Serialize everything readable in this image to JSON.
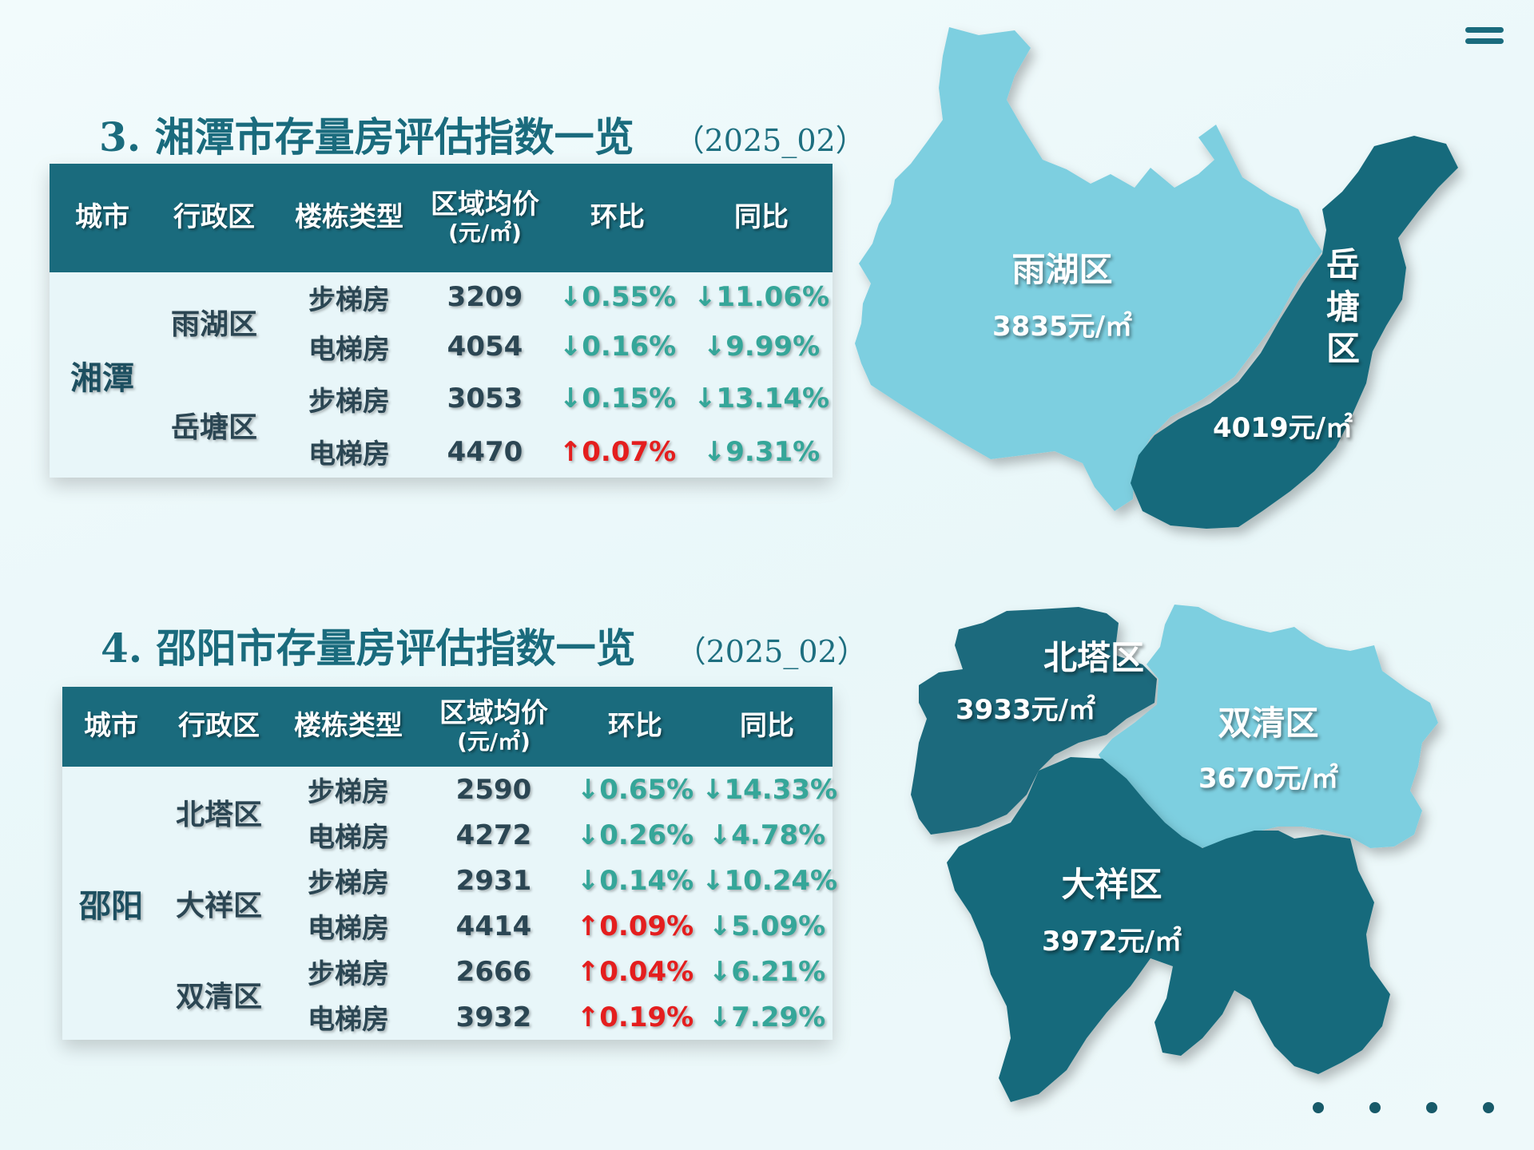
{
  "colors": {
    "dark": "#1a6b7d",
    "light": "#7dcfe0",
    "down": "#35a699",
    "up": "#e41e1e"
  },
  "header": {
    "menu_icon": "menu-icon"
  },
  "columns": [
    "城市",
    "行政区",
    "楼栋类型",
    "区域均价",
    "(元/㎡)",
    "环比",
    "同比"
  ],
  "sections": [
    {
      "title": "3. 湘潭市存量房评估指数一览",
      "period": "（2025_02）",
      "city": "湘潭",
      "rows": [
        {
          "district": "雨湖区",
          "type": "步梯房",
          "price": "3209",
          "mom": "↓0.55%",
          "yoy": "↓11.06%",
          "mom_dir": "down",
          "yoy_dir": "down"
        },
        {
          "district": "雨湖区",
          "type": "电梯房",
          "price": "4054",
          "mom": "↓0.16%",
          "yoy": "↓9.99%",
          "mom_dir": "down",
          "yoy_dir": "down"
        },
        {
          "district": "岳塘区",
          "type": "步梯房",
          "price": "3053",
          "mom": "↓0.15%",
          "yoy": "↓13.14%",
          "mom_dir": "down",
          "yoy_dir": "down"
        },
        {
          "district": "岳塘区",
          "type": "电梯房",
          "price": "4470",
          "mom": "↑0.07%",
          "yoy": "↓9.31%",
          "mom_dir": "up",
          "yoy_dir": "down"
        }
      ],
      "map": [
        {
          "name": "雨湖区",
          "price": "3835元/㎡"
        },
        {
          "name_chars": [
            "岳",
            "塘",
            "区"
          ],
          "price": "4019元/㎡"
        }
      ]
    },
    {
      "title": "4. 邵阳市存量房评估指数一览",
      "period": "（2025_02）",
      "city": "邵阳",
      "rows": [
        {
          "district": "北塔区",
          "type": "步梯房",
          "price": "2590",
          "mom": "↓0.65%",
          "yoy": "↓14.33%",
          "mom_dir": "down",
          "yoy_dir": "down"
        },
        {
          "district": "北塔区",
          "type": "电梯房",
          "price": "4272",
          "mom": "↓0.26%",
          "yoy": "↓4.78%",
          "mom_dir": "down",
          "yoy_dir": "down"
        },
        {
          "district": "大祥区",
          "type": "步梯房",
          "price": "2931",
          "mom": "↓0.14%",
          "yoy": "↓10.24%",
          "mom_dir": "down",
          "yoy_dir": "down"
        },
        {
          "district": "大祥区",
          "type": "电梯房",
          "price": "4414",
          "mom": "↑0.09%",
          "yoy": "↓5.09%",
          "mom_dir": "up",
          "yoy_dir": "down"
        },
        {
          "district": "双清区",
          "type": "步梯房",
          "price": "2666",
          "mom": "↑0.04%",
          "yoy": "↓6.21%",
          "mom_dir": "up",
          "yoy_dir": "down"
        },
        {
          "district": "双清区",
          "type": "电梯房",
          "price": "3932",
          "mom": "↑0.19%",
          "yoy": "↓7.29%",
          "mom_dir": "up",
          "yoy_dir": "down"
        }
      ],
      "map": [
        {
          "name": "北塔区",
          "price": "3933元/㎡"
        },
        {
          "name": "双清区",
          "price": "3670元/㎡"
        },
        {
          "name": "大祥区",
          "price": "3972元/㎡"
        }
      ]
    }
  ],
  "pagination": {
    "count": 4
  }
}
